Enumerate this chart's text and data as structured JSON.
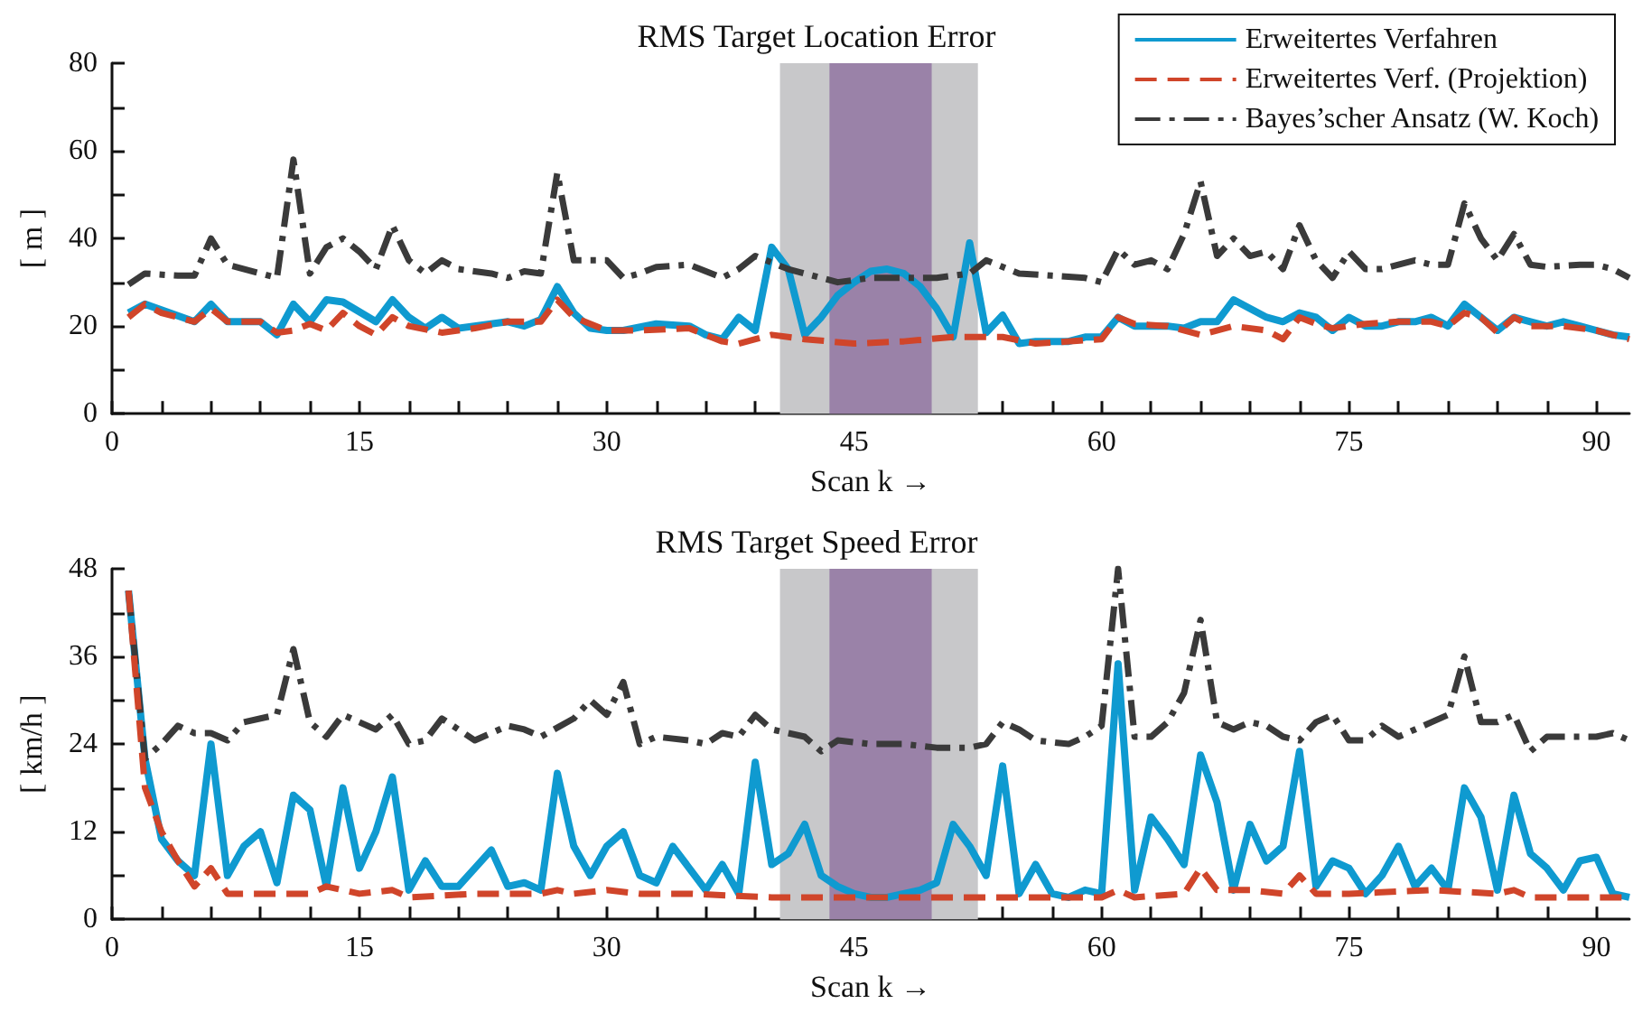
{
  "chart_data": [
    {
      "type": "line",
      "title": "RMS Target Location Error",
      "xlabel": "Scan k →",
      "ylabel": "[ m ]",
      "xlim": [
        0,
        92
      ],
      "xticks": [
        0,
        {
          "value": 3,
          "label": null
        },
        {
          "value": 6,
          "label": null
        },
        {
          "value": 9,
          "label": null
        },
        {
          "value": 12,
          "label": null
        },
        15,
        {
          "value": 18,
          "label": null
        },
        {
          "value": 21,
          "label": null
        },
        {
          "value": 24,
          "label": null
        },
        {
          "value": 27,
          "label": null
        },
        30,
        {
          "value": 33,
          "label": null
        },
        {
          "value": 36,
          "label": null
        },
        {
          "value": 39,
          "label": null
        },
        {
          "value": 42,
          "label": null
        },
        45,
        {
          "value": 48,
          "label": null
        },
        {
          "value": 51,
          "label": null
        },
        {
          "value": 54,
          "label": null
        },
        {
          "value": 57,
          "label": null
        },
        60,
        {
          "value": 63,
          "label": null
        },
        {
          "value": 66,
          "label": null
        },
        {
          "value": 69,
          "label": null
        },
        {
          "value": 72,
          "label": null
        },
        75,
        {
          "value": 78,
          "label": null
        },
        {
          "value": 81,
          "label": null
        },
        {
          "value": 84,
          "label": null
        },
        {
          "value": 87,
          "label": null
        },
        90
      ],
      "ylim": [
        0,
        80
      ],
      "yticks": [
        0,
        {
          "value": 10,
          "label": null
        },
        20,
        {
          "value": 30,
          "label": null
        },
        40,
        {
          "value": 50,
          "label": null
        },
        60,
        {
          "value": 70,
          "label": null
        },
        80
      ],
      "grid": false,
      "legend": "top right",
      "marker": "none",
      "bands": [
        {
          "axis": "x",
          "from": 40.5,
          "to": 52.5,
          "color": "#c8c8ca"
        },
        {
          "axis": "x",
          "from": 43.5,
          "to": 49.7,
          "color": "#9a82a8"
        }
      ],
      "series": [
        {
          "name": "Erweitertes Verfahren",
          "color": "#0f9ad0",
          "line_style": "solid",
          "x": [
            1,
            2,
            5,
            6,
            7,
            9,
            10,
            11,
            12,
            13,
            14,
            16,
            17,
            18,
            19,
            20,
            21,
            24,
            25,
            26,
            27,
            28,
            29,
            30,
            31,
            33,
            35,
            36,
            37,
            38,
            39,
            40,
            41,
            42,
            43,
            44,
            45,
            46,
            47,
            48,
            49,
            50,
            51,
            52,
            53,
            54,
            55,
            56,
            58,
            59,
            60,
            61,
            62,
            64,
            65,
            66,
            67,
            68,
            69,
            70,
            71,
            72,
            73,
            74,
            75,
            76,
            77,
            78,
            79,
            80,
            81,
            82,
            83,
            84,
            85,
            86,
            87,
            88,
            89,
            90,
            91,
            92
          ],
          "values": [
            23,
            25,
            21,
            25,
            21,
            21,
            18,
            25,
            21,
            26,
            25.5,
            21,
            26,
            22,
            19.5,
            22,
            19.5,
            21,
            20,
            21.5,
            29,
            23,
            19.5,
            19,
            19,
            20.5,
            20,
            18,
            17,
            22,
            19,
            38,
            33,
            18,
            22,
            27,
            30,
            32.5,
            33,
            32,
            29,
            24,
            17.5,
            39,
            18.5,
            22.5,
            16,
            16.5,
            16.5,
            17.5,
            17.5,
            22,
            20,
            20,
            19.5,
            21,
            21,
            26,
            24,
            22,
            21,
            23,
            22,
            19,
            22,
            20,
            20,
            21,
            21,
            22,
            20,
            25,
            22,
            19,
            22,
            21,
            20,
            21,
            20,
            19,
            18,
            17.5
          ]
        },
        {
          "name": "Erweitertes Verf. (Projektion)",
          "color": "#d0452a",
          "line_style": "dashed",
          "x": [
            1,
            2,
            3,
            5,
            6,
            7,
            9,
            10,
            11,
            12,
            13,
            14,
            15,
            16,
            17,
            18,
            20,
            22,
            24,
            26,
            27,
            28,
            30,
            32,
            35,
            37,
            38,
            40,
            42,
            45,
            48,
            51,
            54,
            56,
            60,
            61,
            62,
            64,
            66,
            68,
            70,
            71,
            72,
            73,
            74,
            76,
            78,
            80,
            81,
            82,
            83,
            84,
            85,
            86,
            88,
            90,
            92
          ],
          "values": [
            22,
            25,
            23,
            21,
            24,
            21,
            21,
            18.5,
            19,
            20.5,
            19,
            23,
            20,
            18,
            22,
            20,
            18.5,
            19.5,
            21,
            21,
            26,
            22,
            19,
            19,
            19.5,
            16.5,
            16,
            18,
            17,
            16,
            16.5,
            17.5,
            17.5,
            16,
            17,
            22,
            20.5,
            20,
            18,
            20,
            19,
            17,
            22,
            20.5,
            19.5,
            20.5,
            21,
            21,
            20,
            23,
            22,
            18.5,
            22,
            20,
            20,
            19,
            17
          ]
        },
        {
          "name": "Bayes’scher Ansatz (W. Koch)",
          "color": "#3a3a3a",
          "line_style": "dashdot",
          "x": [
            1,
            2,
            4,
            5,
            6,
            7,
            9,
            10,
            11,
            12,
            13,
            14,
            15,
            16,
            17,
            18,
            19,
            20,
            21,
            23,
            24,
            25,
            26,
            27,
            28,
            30,
            31,
            32,
            33,
            35,
            37,
            38,
            39,
            40,
            41,
            42,
            43,
            44,
            46,
            48,
            50,
            52,
            53,
            55,
            57,
            59,
            60,
            61,
            62,
            63,
            64,
            65,
            66,
            67,
            68,
            69,
            70,
            71,
            72,
            73,
            74,
            75,
            76,
            77,
            78,
            79,
            80,
            81,
            82,
            83,
            84,
            85,
            86,
            87,
            89,
            90,
            91,
            92
          ],
          "values": [
            29.5,
            32,
            31.5,
            31.5,
            40,
            34,
            32,
            31,
            58,
            32,
            38,
            40,
            37,
            33,
            43,
            35,
            32,
            35,
            33,
            32,
            31,
            32.5,
            32,
            55,
            35,
            35,
            31,
            32,
            33.5,
            34,
            31,
            33,
            36,
            34.5,
            33,
            32,
            31,
            30,
            31,
            31,
            31,
            32,
            35,
            32,
            31.5,
            31,
            30,
            37.5,
            34,
            35,
            33,
            41,
            53,
            36,
            40,
            36,
            37,
            33,
            43,
            35,
            31,
            37,
            33,
            33,
            34,
            35,
            34,
            34,
            48,
            40,
            35,
            41,
            34,
            33.5,
            34,
            34,
            33,
            31
          ]
        }
      ]
    },
    {
      "type": "line",
      "title": "RMS Target Speed Error",
      "xlabel": "Scan k →",
      "ylabel": "[ km/h ]",
      "xlim": [
        0,
        92
      ],
      "xticks": [
        0,
        {
          "value": 3,
          "label": null
        },
        {
          "value": 6,
          "label": null
        },
        {
          "value": 9,
          "label": null
        },
        {
          "value": 12,
          "label": null
        },
        15,
        {
          "value": 18,
          "label": null
        },
        {
          "value": 21,
          "label": null
        },
        {
          "value": 24,
          "label": null
        },
        {
          "value": 27,
          "label": null
        },
        30,
        {
          "value": 33,
          "label": null
        },
        {
          "value": 36,
          "label": null
        },
        {
          "value": 39,
          "label": null
        },
        {
          "value": 42,
          "label": null
        },
        45,
        {
          "value": 48,
          "label": null
        },
        {
          "value": 51,
          "label": null
        },
        {
          "value": 54,
          "label": null
        },
        {
          "value": 57,
          "label": null
        },
        60,
        {
          "value": 63,
          "label": null
        },
        {
          "value": 66,
          "label": null
        },
        {
          "value": 69,
          "label": null
        },
        {
          "value": 72,
          "label": null
        },
        75,
        {
          "value": 78,
          "label": null
        },
        {
          "value": 81,
          "label": null
        },
        {
          "value": 84,
          "label": null
        },
        {
          "value": 87,
          "label": null
        },
        90
      ],
      "ylim": [
        0,
        48
      ],
      "yticks": [
        0,
        {
          "value": 6,
          "label": null
        },
        12,
        {
          "value": 18,
          "label": null
        },
        24,
        {
          "value": 30,
          "label": null
        },
        36,
        {
          "value": 42,
          "label": null
        },
        48
      ],
      "grid": false,
      "marker": "none",
      "bands": [
        {
          "axis": "x",
          "from": 40.5,
          "to": 52.5,
          "color": "#c8c8ca"
        },
        {
          "axis": "x",
          "from": 43.5,
          "to": 49.7,
          "color": "#9a82a8"
        }
      ],
      "series": [
        {
          "color": "#0f9ad0",
          "line_style": "solid",
          "x": [
            1,
            2,
            3,
            4,
            5,
            6,
            7,
            8,
            9,
            10,
            11,
            12,
            13,
            14,
            15,
            16,
            17,
            18,
            19,
            20,
            21,
            22,
            23,
            24,
            25,
            26,
            27,
            28,
            29,
            30,
            31,
            32,
            33,
            34,
            35,
            36,
            37,
            38,
            39,
            40,
            41,
            42,
            43,
            44,
            45,
            46,
            47,
            48,
            49,
            50,
            51,
            52,
            53,
            54,
            55,
            56,
            57,
            58,
            59,
            60,
            61,
            62,
            63,
            64,
            65,
            66,
            67,
            68,
            69,
            70,
            71,
            72,
            73,
            74,
            75,
            76,
            77,
            78,
            79,
            80,
            81,
            82,
            83,
            84,
            85,
            86,
            87,
            88,
            89,
            90,
            91,
            92
          ],
          "values": [
            45,
            22,
            11,
            8,
            6,
            24,
            6,
            10,
            12,
            5,
            17,
            15,
            4.5,
            18,
            7,
            12,
            19.5,
            4,
            8,
            4.5,
            4.5,
            7,
            9.5,
            4.5,
            5,
            4,
            20,
            10,
            6,
            10,
            12,
            6,
            5,
            10,
            7,
            4,
            7.5,
            3.5,
            21.5,
            7.5,
            9,
            13,
            6,
            4.5,
            3.5,
            3,
            3,
            3.5,
            4,
            5,
            13,
            10,
            6,
            21,
            3.5,
            7.5,
            3.5,
            3,
            4,
            3.5,
            35,
            4,
            14,
            11,
            7.5,
            22.5,
            16,
            4,
            13,
            8,
            10,
            23,
            4.5,
            8,
            7,
            3.5,
            6,
            10,
            4.5,
            7,
            4,
            18,
            14,
            4,
            17,
            9,
            7,
            4,
            8,
            8.5,
            3.5,
            3
          ]
        },
        {
          "color": "#d0452a",
          "line_style": "dashed",
          "x": [
            1,
            2,
            3,
            4,
            5,
            6,
            7,
            10,
            12,
            13,
            15,
            17,
            18,
            22,
            26,
            27,
            28,
            30,
            32,
            35,
            40,
            45,
            50,
            55,
            60,
            61,
            62,
            65,
            66,
            67,
            69,
            71,
            72,
            73,
            75,
            80,
            84,
            85,
            86,
            92
          ],
          "values": [
            45,
            18,
            12,
            8,
            4.5,
            7,
            3.5,
            3.5,
            3.5,
            4.5,
            3.5,
            4,
            3,
            3.5,
            3.5,
            4,
            3.5,
            4,
            3.5,
            3.5,
            3,
            3,
            3,
            3,
            3,
            4,
            3,
            3.5,
            7,
            4,
            4,
            3.5,
            6,
            3.5,
            3.5,
            4,
            3.5,
            4,
            3,
            3
          ]
        },
        {
          "color": "#3a3a3a",
          "line_style": "dashdot",
          "x": [
            1,
            2,
            3,
            4,
            5,
            6,
            7,
            8,
            10,
            11,
            12,
            13,
            14,
            15,
            16,
            17,
            18,
            19,
            20,
            21,
            22,
            24,
            25,
            26,
            28,
            29,
            30,
            31,
            32,
            33,
            35,
            36,
            37,
            38,
            39,
            40,
            41,
            42,
            43,
            44,
            46,
            48,
            50,
            52,
            53,
            54,
            55,
            56,
            58,
            59,
            60,
            61,
            62,
            63,
            64,
            65,
            66,
            67,
            68,
            69,
            70,
            71,
            72,
            73,
            74,
            75,
            76,
            77,
            78,
            79,
            80,
            81,
            82,
            83,
            84,
            85,
            86,
            87,
            88,
            89,
            90,
            91,
            92
          ],
          "values": [
            45,
            22,
            24,
            26.5,
            25.5,
            25.5,
            24.5,
            27,
            28,
            37,
            27,
            25,
            28,
            27,
            26,
            28,
            24,
            24.5,
            27.5,
            26,
            24.5,
            26.5,
            26,
            25,
            27.5,
            30,
            28,
            32.5,
            24,
            25,
            24.5,
            24,
            25.5,
            25,
            28,
            26,
            25.5,
            25,
            23,
            24.5,
            24,
            24,
            23.5,
            23.5,
            24,
            27,
            26,
            24.5,
            24,
            25,
            26.5,
            48,
            25,
            25,
            27,
            31,
            41,
            27,
            26,
            27,
            26.5,
            25,
            24.5,
            27,
            28,
            24.5,
            24.5,
            26.5,
            25,
            26,
            27,
            28,
            36,
            27,
            27,
            28,
            23,
            25,
            25,
            25,
            25,
            25.5,
            24.5
          ]
        }
      ]
    }
  ]
}
